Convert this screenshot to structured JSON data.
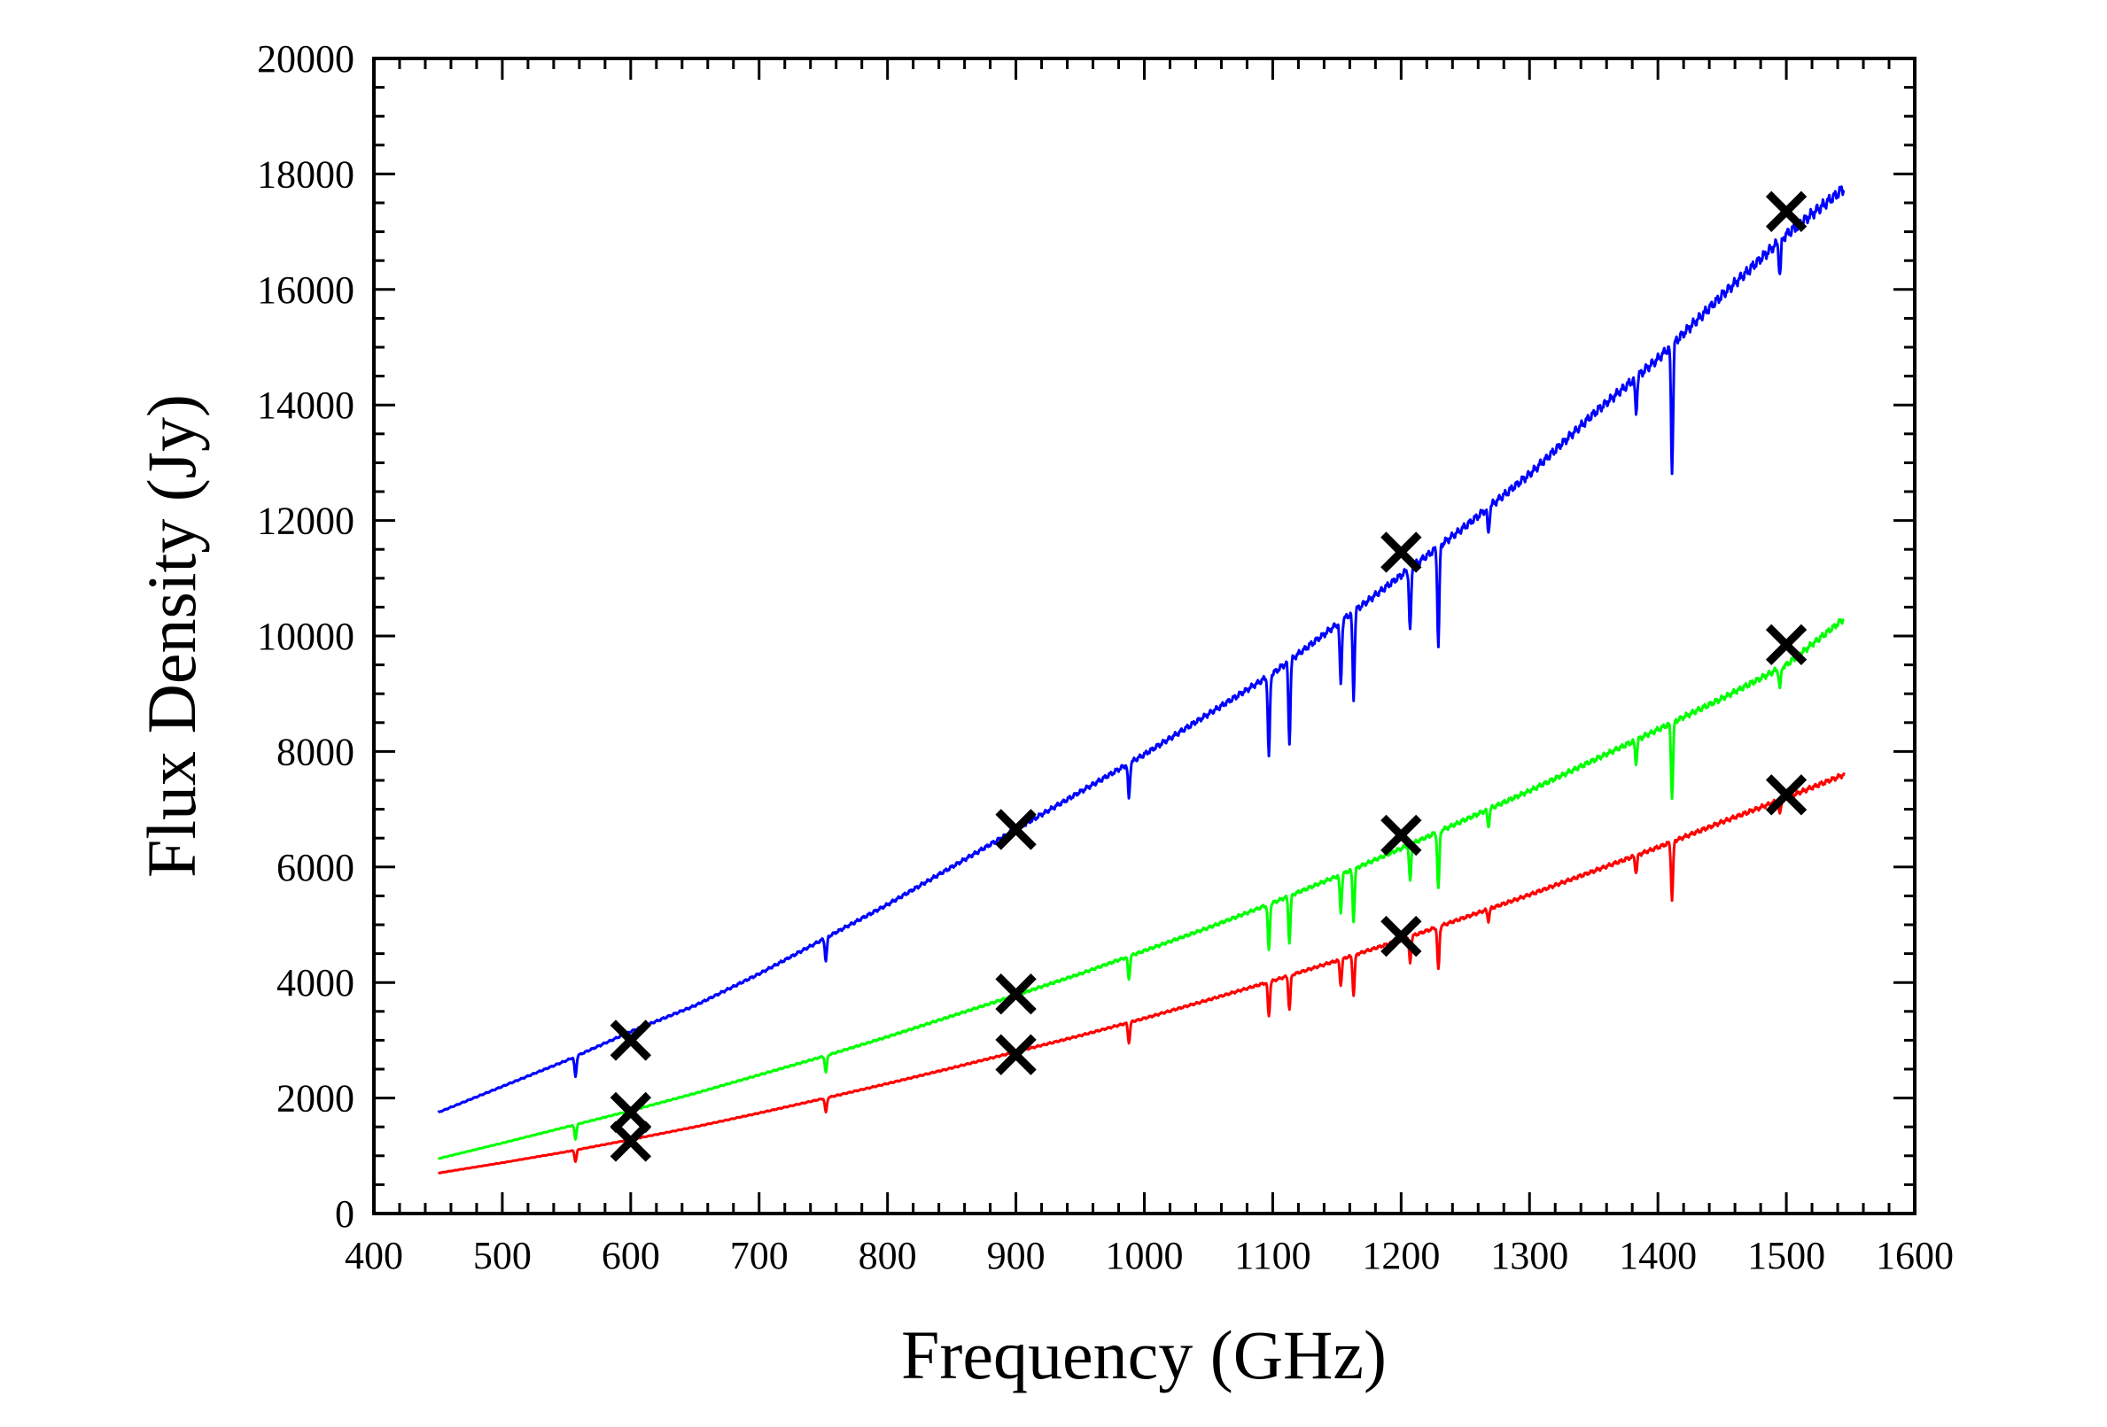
{
  "chart_data": {
    "type": "line",
    "title": "",
    "xlabel": "Frequency (GHz)",
    "ylabel": "Flux Density (Jy)",
    "xlim": [
      400,
      1600
    ],
    "ylim": [
      0,
      20000
    ],
    "x_ticks": [
      400,
      500,
      600,
      700,
      800,
      900,
      1000,
      1100,
      1200,
      1300,
      1400,
      1500,
      1600
    ],
    "y_ticks": [
      0,
      2000,
      4000,
      6000,
      8000,
      10000,
      12000,
      14000,
      16000,
      18000,
      20000
    ],
    "x_tick_labels": [
      "400",
      "500",
      "600",
      "700",
      "800",
      "900",
      "1000",
      "1100",
      "1200",
      "1300",
      "1400",
      "1500",
      "1600"
    ],
    "y_tick_labels": [
      "0",
      "2000",
      "4000",
      "6000",
      "8000",
      "10000",
      "12000",
      "14000",
      "16000",
      "18000",
      "20000"
    ],
    "grid": false,
    "legend": "none",
    "series": [
      {
        "name": "blue spectrum",
        "color": "#0000ff",
        "x": [
          450,
          500,
          550,
          600,
          650,
          700,
          750,
          800,
          850,
          900,
          950,
          1000,
          1050,
          1100,
          1150,
          1200,
          1250,
          1300,
          1350,
          1400,
          1450,
          1500,
          1545
        ],
        "values": [
          1750,
          2200,
          2650,
          3150,
          3600,
          4150,
          4750,
          5350,
          6000,
          6650,
          7300,
          7950,
          8650,
          9350,
          10200,
          11050,
          11900,
          12800,
          13850,
          14800,
          15900,
          16950,
          17750
        ],
        "dips": [
          [
            557,
            350
          ],
          [
            752,
            400
          ],
          [
            988,
            600
          ],
          [
            1097,
            1400
          ],
          [
            1113,
            1400
          ],
          [
            1153,
            1100
          ],
          [
            1163,
            1500
          ],
          [
            1207,
            1100
          ],
          [
            1229,
            1700
          ],
          [
            1268,
            450
          ],
          [
            1383,
            600
          ],
          [
            1411,
            2200
          ],
          [
            1495,
            600
          ]
        ]
      },
      {
        "name": "green spectrum",
        "color": "#00ff00",
        "x": [
          450,
          500,
          550,
          600,
          650,
          700,
          750,
          800,
          850,
          900,
          950,
          1000,
          1050,
          1100,
          1150,
          1200,
          1250,
          1300,
          1350,
          1400,
          1450,
          1500,
          1545
        ],
        "values": [
          950,
          1220,
          1500,
          1780,
          2080,
          2400,
          2720,
          3060,
          3420,
          3780,
          4150,
          4550,
          4950,
          5380,
          5840,
          6320,
          6820,
          7320,
          7850,
          8380,
          8920,
          9500,
          10300
        ],
        "dips": [
          [
            557,
            250
          ],
          [
            752,
            300
          ],
          [
            988,
            400
          ],
          [
            1097,
            800
          ],
          [
            1113,
            800
          ],
          [
            1153,
            650
          ],
          [
            1163,
            900
          ],
          [
            1207,
            650
          ],
          [
            1229,
            1000
          ],
          [
            1268,
            300
          ],
          [
            1383,
            400
          ],
          [
            1411,
            1300
          ],
          [
            1495,
            350
          ]
        ]
      },
      {
        "name": "red spectrum",
        "color": "#ff0000",
        "x": [
          450,
          500,
          550,
          600,
          650,
          700,
          750,
          800,
          850,
          900,
          950,
          1000,
          1050,
          1100,
          1150,
          1200,
          1250,
          1300,
          1350,
          1400,
          1450,
          1500,
          1545
        ],
        "values": [
          700,
          880,
          1070,
          1280,
          1500,
          1740,
          1990,
          2250,
          2520,
          2800,
          3080,
          3380,
          3700,
          4030,
          4380,
          4740,
          5130,
          5520,
          5930,
          6340,
          6780,
          7200,
          7600
        ],
        "dips": [
          [
            557,
            200
          ],
          [
            752,
            250
          ],
          [
            988,
            350
          ],
          [
            1097,
            600
          ],
          [
            1113,
            600
          ],
          [
            1153,
            450
          ],
          [
            1163,
            700
          ],
          [
            1207,
            450
          ],
          [
            1229,
            750
          ],
          [
            1268,
            200
          ],
          [
            1383,
            300
          ],
          [
            1411,
            1000
          ],
          [
            1495,
            250
          ]
        ]
      },
      {
        "name": "X markers",
        "marker": "x",
        "color": "#000000",
        "points": [
          [
            600,
            3000
          ],
          [
            600,
            1750
          ],
          [
            600,
            1250
          ],
          [
            900,
            6650
          ],
          [
            900,
            3800
          ],
          [
            900,
            2750
          ],
          [
            1200,
            11450
          ],
          [
            1200,
            6550
          ],
          [
            1200,
            4800
          ],
          [
            1500,
            17350
          ],
          [
            1500,
            9850
          ],
          [
            1500,
            7250
          ]
        ]
      }
    ]
  }
}
